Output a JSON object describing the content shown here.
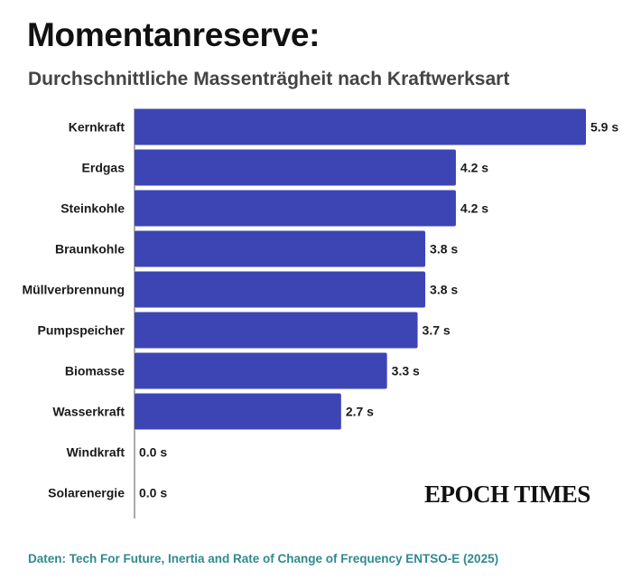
{
  "header": {
    "title": "Momentanreserve:",
    "subtitle": "Durchschnittliche Massenträgheit nach Kraftwerksart"
  },
  "chart_data": {
    "type": "bar",
    "orientation": "horizontal",
    "categories": [
      "Kernkraft",
      "Erdgas",
      "Steinkohle",
      "Braunkohle",
      "Müllverbrennung",
      "Pumpspeicher",
      "Biomasse",
      "Wasserkraft",
      "Windkraft",
      "Solarenergie"
    ],
    "values": [
      5.9,
      4.2,
      4.2,
      3.8,
      3.8,
      3.7,
      3.3,
      2.7,
      0.0,
      0.0
    ],
    "value_labels": [
      "5.9 s",
      "4.2 s",
      "4.2 s",
      "3.8 s",
      "3.8 s",
      "3.7 s",
      "3.3 s",
      "2.7 s",
      "0.0 s",
      "0.0 s"
    ],
    "unit": "s",
    "xlim": [
      0,
      5.9
    ],
    "bar_color": "#3d45b5",
    "grid": false,
    "legend": "none"
  },
  "branding": {
    "logo_text": "EPOCH TIMES"
  },
  "footer": {
    "source": "Daten: Tech For Future, Inertia and Rate of Change of Frequency ENTSO-E (2025)"
  }
}
